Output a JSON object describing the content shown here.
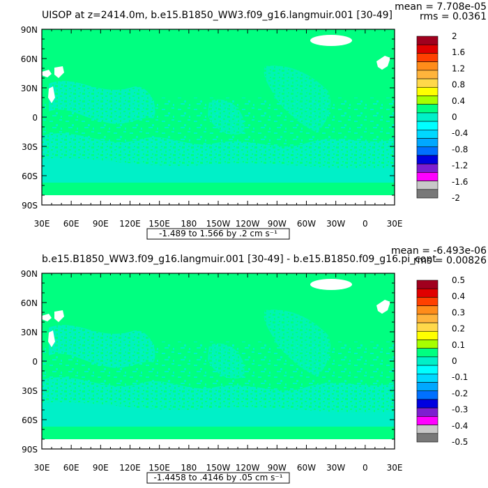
{
  "chart_data": [
    {
      "type": "heatmap",
      "title": "UISOP at z=2414.0m, b.e15.B1850_WW3.f09_g16.langmuir.001 [30-49]",
      "stats": {
        "mean": "mean = 7.708e-05",
        "rms": "rms = 0.0361"
      },
      "range_label": "-1.489 to 1.566 by .2 cm s⁻¹",
      "x_ticks": [
        "30E",
        "60E",
        "90E",
        "120E",
        "150E",
        "180",
        "150W",
        "120W",
        "90W",
        "60W",
        "30W",
        "0",
        "30E"
      ],
      "y_ticks": [
        "90N",
        "60N",
        "30N",
        "0",
        "30S",
        "60S",
        "90S"
      ],
      "xlim": [
        30,
        390
      ],
      "ylim": [
        -90,
        90
      ],
      "colorbar": {
        "labels": [
          "2",
          "1.6",
          "1.2",
          "0.8",
          "0.4",
          "0",
          "-0.4",
          "-0.8",
          "-1.2",
          "-1.6",
          "-2"
        ],
        "colors": [
          "#a0001e",
          "#e00000",
          "#ff4000",
          "#ff8c1a",
          "#ffb43c",
          "#ffd84a",
          "#ffff00",
          "#a6ff00",
          "#00ff80",
          "#00f0c8",
          "#00ffff",
          "#00d8ff",
          "#00a8ff",
          "#0070ff",
          "#0000e0",
          "#7d1ed0",
          "#ff00ff",
          "#c8c8c8",
          "#787878"
        ]
      },
      "field_summary": {
        "dominant_band": "0 to 0.2",
        "secondary_band": "-0.2 to 0"
      }
    },
    {
      "type": "heatmap",
      "title": "b.e15.B1850_WW3.f09_g16.langmuir.001 [30-49] - b.e15.B1850.f09_g16.pi_cont",
      "stats": {
        "mean": "mean = -6.493e-06",
        "rms": "rms = 0.00826"
      },
      "range_label": "-1.4458 to .4146 by .05 cm s⁻¹",
      "x_ticks": [
        "30E",
        "60E",
        "90E",
        "120E",
        "150E",
        "180",
        "150W",
        "120W",
        "90W",
        "60W",
        "30W",
        "0",
        "30E"
      ],
      "y_ticks": [
        "90N",
        "60N",
        "30N",
        "0",
        "30S",
        "60S",
        "90S"
      ],
      "xlim": [
        30,
        390
      ],
      "ylim": [
        -90,
        90
      ],
      "colorbar": {
        "labels": [
          "0.5",
          "0.4",
          "0.3",
          "0.2",
          "0.1",
          "0",
          "-0.1",
          "-0.2",
          "-0.3",
          "-0.4",
          "-0.5"
        ],
        "colors": [
          "#a0001e",
          "#e00000",
          "#ff4000",
          "#ff8c1a",
          "#ffb43c",
          "#ffd84a",
          "#ffff00",
          "#a6ff00",
          "#00ff80",
          "#00f0c8",
          "#00ffff",
          "#00d8ff",
          "#00a8ff",
          "#0070ff",
          "#0000e0",
          "#7d1ed0",
          "#ff00ff",
          "#c8c8c8",
          "#787878"
        ]
      },
      "field_summary": {
        "dominant_band": "0 to 0.05",
        "secondary_band": "-0.05 to 0"
      }
    }
  ]
}
